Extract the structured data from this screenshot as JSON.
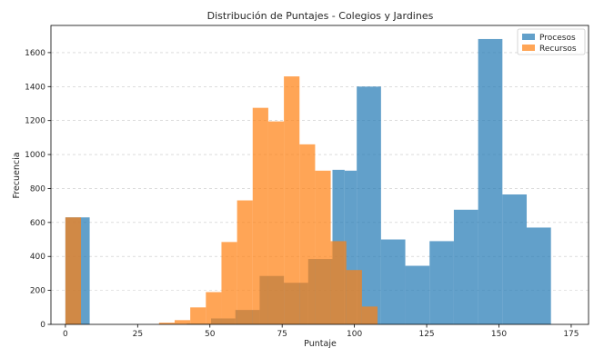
{
  "chart_data": {
    "type": "bar",
    "title": "Distribución de Puntajes - Colegios y Jardines",
    "xlabel": "Puntaje",
    "ylabel": "Frecuencia",
    "xlim": [
      -5,
      181
    ],
    "ylim": [
      0,
      1760
    ],
    "xticks": [
      0,
      25,
      50,
      75,
      100,
      125,
      150,
      175
    ],
    "yticks": [
      0,
      200,
      400,
      600,
      800,
      1000,
      1200,
      1400,
      1600
    ],
    "grid": "y-dashed",
    "legend_position": "top-right",
    "series": [
      {
        "name": "Procesos",
        "color": "#1f77b4",
        "opacity": 0.7,
        "bins": [
          {
            "x0": 0,
            "x1": 8.4,
            "value": 630
          },
          {
            "x0": 8.4,
            "x1": 16.8,
            "value": 0
          },
          {
            "x0": 16.8,
            "x1": 25.2,
            "value": 0
          },
          {
            "x0": 25.2,
            "x1": 33.6,
            "value": 0
          },
          {
            "x0": 33.6,
            "x1": 42.0,
            "value": 0
          },
          {
            "x0": 42.0,
            "x1": 50.4,
            "value": 5
          },
          {
            "x0": 50.4,
            "x1": 58.8,
            "value": 35
          },
          {
            "x0": 58.8,
            "x1": 67.2,
            "value": 85
          },
          {
            "x0": 67.2,
            "x1": 75.6,
            "value": 285
          },
          {
            "x0": 75.6,
            "x1": 84.0,
            "value": 245
          },
          {
            "x0": 84.0,
            "x1": 92.4,
            "value": 385
          },
          {
            "x0": 92.4,
            "x1": 96.6,
            "value": 910
          },
          {
            "x0": 96.6,
            "x1": 100.8,
            "value": 905
          },
          {
            "x0": 100.8,
            "x1": 109.2,
            "value": 1400
          },
          {
            "x0": 109.2,
            "x1": 117.6,
            "value": 500
          },
          {
            "x0": 117.6,
            "x1": 126.0,
            "value": 345
          },
          {
            "x0": 126.0,
            "x1": 134.4,
            "value": 490
          },
          {
            "x0": 134.4,
            "x1": 142.8,
            "value": 675
          },
          {
            "x0": 142.8,
            "x1": 151.2,
            "value": 1680
          },
          {
            "x0": 151.2,
            "x1": 159.6,
            "value": 765
          },
          {
            "x0": 159.6,
            "x1": 168.0,
            "value": 570
          }
        ]
      },
      {
        "name": "Recursos",
        "color": "#ff7f0e",
        "opacity": 0.7,
        "bins": [
          {
            "x0": 0,
            "x1": 5.4,
            "value": 630
          },
          {
            "x0": 32.4,
            "x1": 37.8,
            "value": 10
          },
          {
            "x0": 37.8,
            "x1": 43.2,
            "value": 25
          },
          {
            "x0": 43.2,
            "x1": 48.6,
            "value": 100
          },
          {
            "x0": 48.6,
            "x1": 54.0,
            "value": 190
          },
          {
            "x0": 54.0,
            "x1": 59.4,
            "value": 485
          },
          {
            "x0": 59.4,
            "x1": 64.8,
            "value": 730
          },
          {
            "x0": 64.8,
            "x1": 70.2,
            "value": 1275
          },
          {
            "x0": 70.2,
            "x1": 75.6,
            "value": 1195
          },
          {
            "x0": 75.6,
            "x1": 81.0,
            "value": 1460
          },
          {
            "x0": 81.0,
            "x1": 86.4,
            "value": 1060
          },
          {
            "x0": 86.4,
            "x1": 91.8,
            "value": 905
          },
          {
            "x0": 91.8,
            "x1": 97.2,
            "value": 490
          },
          {
            "x0": 97.2,
            "x1": 102.6,
            "value": 320
          },
          {
            "x0": 102.6,
            "x1": 108.0,
            "value": 105
          }
        ]
      }
    ]
  }
}
